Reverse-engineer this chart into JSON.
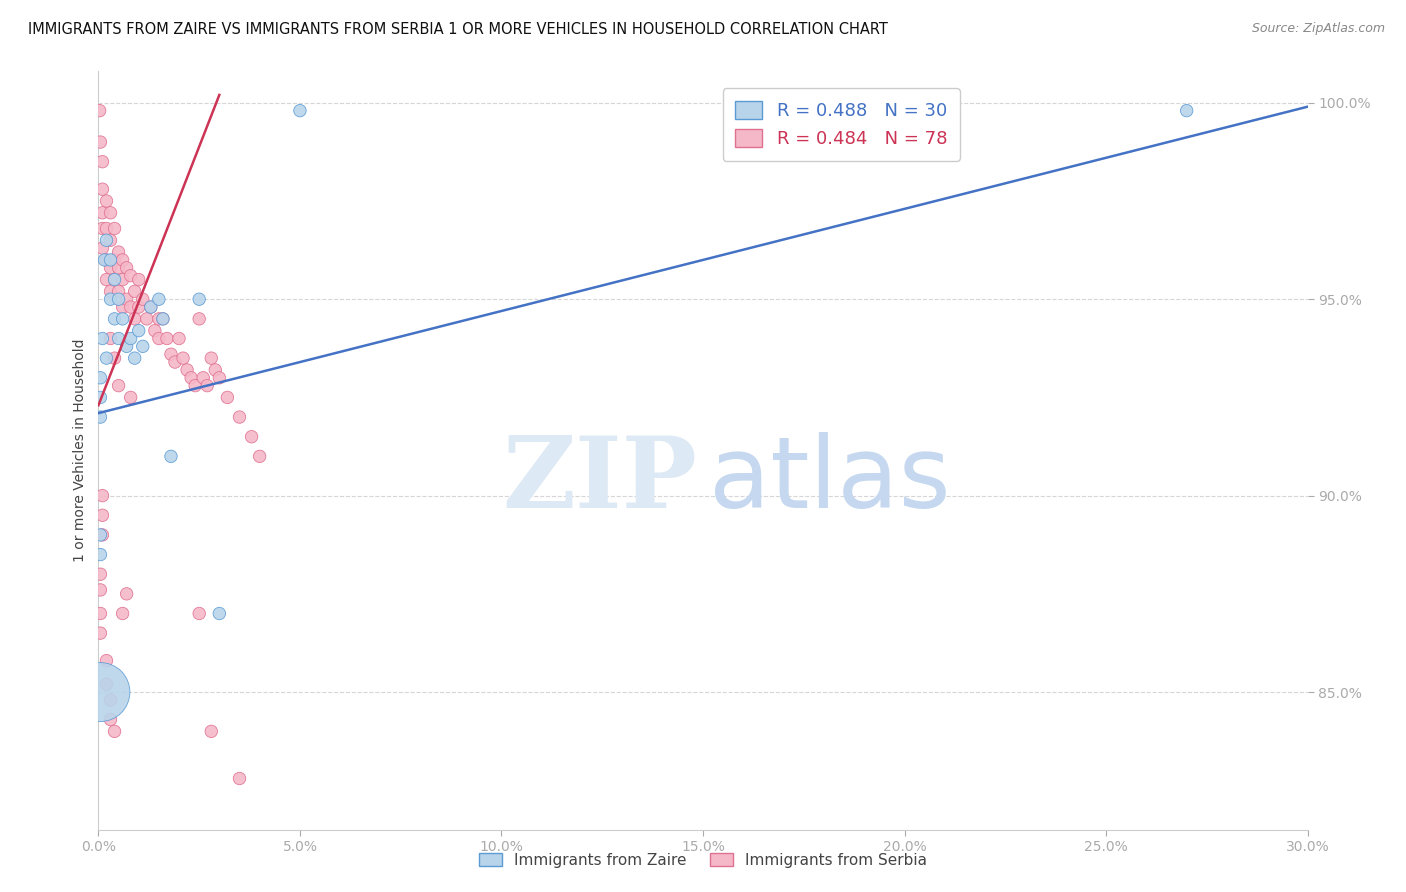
{
  "title": "IMMIGRANTS FROM ZAIRE VS IMMIGRANTS FROM SERBIA 1 OR MORE VEHICLES IN HOUSEHOLD CORRELATION CHART",
  "source": "Source: ZipAtlas.com",
  "ylabel": "1 or more Vehicles in Household",
  "xlim": [
    0.0,
    0.3
  ],
  "ylim": [
    0.815,
    1.008
  ],
  "xtick_labels": [
    "0.0%",
    "5.0%",
    "10.0%",
    "15.0%",
    "20.0%",
    "25.0%",
    "30.0%"
  ],
  "xtick_vals": [
    0.0,
    0.05,
    0.1,
    0.15,
    0.2,
    0.25,
    0.3
  ],
  "ytick_labels": [
    "85.0%",
    "90.0%",
    "95.0%",
    "100.0%"
  ],
  "ytick_vals": [
    0.85,
    0.9,
    0.95,
    1.0
  ],
  "grid_color": "#cccccc",
  "background_color": "#ffffff",
  "zaire_color": "#b8d4ea",
  "serbia_color": "#f5b8c8",
  "zaire_edge_color": "#5b9bd5",
  "serbia_edge_color": "#e07090",
  "zaire_trend_color": "#4472c4",
  "serbia_trend_color": "#cc3355",
  "legend_zaire_label": "R = 0.488   N = 30",
  "legend_serbia_label": "R = 0.484   N = 78",
  "zaire_x": [
    0.0005,
    0.001,
    0.0015,
    0.002,
    0.002,
    0.003,
    0.003,
    0.004,
    0.004,
    0.005,
    0.005,
    0.006,
    0.007,
    0.008,
    0.009,
    0.01,
    0.011,
    0.013,
    0.015,
    0.016,
    0.018,
    0.025,
    0.03,
    0.05,
    0.27,
    0.0005,
    0.0005,
    0.0005,
    0.0005,
    0.0005
  ],
  "zaire_y": [
    0.93,
    0.94,
    0.96,
    0.935,
    0.965,
    0.95,
    0.96,
    0.955,
    0.945,
    0.94,
    0.95,
    0.945,
    0.938,
    0.94,
    0.935,
    0.942,
    0.938,
    0.948,
    0.95,
    0.945,
    0.91,
    0.95,
    0.87,
    0.998,
    0.998,
    0.92,
    0.925,
    0.89,
    0.885,
    0.85
  ],
  "zaire_sizes": [
    80,
    80,
    80,
    80,
    80,
    80,
    80,
    80,
    80,
    80,
    80,
    80,
    80,
    80,
    80,
    80,
    80,
    80,
    80,
    80,
    80,
    80,
    80,
    80,
    80,
    80,
    80,
    80,
    80,
    1800
  ],
  "serbia_x": [
    0.0003,
    0.0005,
    0.001,
    0.001,
    0.001,
    0.001,
    0.001,
    0.002,
    0.002,
    0.002,
    0.002,
    0.003,
    0.003,
    0.003,
    0.003,
    0.004,
    0.004,
    0.004,
    0.005,
    0.005,
    0.005,
    0.006,
    0.006,
    0.006,
    0.007,
    0.007,
    0.008,
    0.008,
    0.009,
    0.009,
    0.01,
    0.01,
    0.011,
    0.012,
    0.013,
    0.014,
    0.015,
    0.015,
    0.016,
    0.017,
    0.018,
    0.019,
    0.02,
    0.021,
    0.022,
    0.023,
    0.024,
    0.025,
    0.026,
    0.027,
    0.028,
    0.029,
    0.03,
    0.032,
    0.035,
    0.038,
    0.04,
    0.003,
    0.004,
    0.005,
    0.001,
    0.001,
    0.001,
    0.0005,
    0.0005,
    0.0005,
    0.0005,
    0.002,
    0.002,
    0.003,
    0.003,
    0.004,
    0.006,
    0.007,
    0.008,
    0.025,
    0.028,
    0.035
  ],
  "serbia_y": [
    0.998,
    0.99,
    0.985,
    0.978,
    0.972,
    0.968,
    0.963,
    0.975,
    0.968,
    0.96,
    0.955,
    0.972,
    0.965,
    0.958,
    0.952,
    0.968,
    0.96,
    0.955,
    0.962,
    0.958,
    0.952,
    0.96,
    0.955,
    0.948,
    0.958,
    0.95,
    0.956,
    0.948,
    0.952,
    0.945,
    0.955,
    0.948,
    0.95,
    0.945,
    0.948,
    0.942,
    0.945,
    0.94,
    0.945,
    0.94,
    0.936,
    0.934,
    0.94,
    0.935,
    0.932,
    0.93,
    0.928,
    0.945,
    0.93,
    0.928,
    0.935,
    0.932,
    0.93,
    0.925,
    0.92,
    0.915,
    0.91,
    0.94,
    0.935,
    0.928,
    0.9,
    0.895,
    0.89,
    0.88,
    0.876,
    0.87,
    0.865,
    0.858,
    0.852,
    0.848,
    0.843,
    0.84,
    0.87,
    0.875,
    0.925,
    0.87,
    0.84,
    0.828
  ],
  "serbia_sizes": [
    80,
    80,
    80,
    80,
    80,
    80,
    80,
    80,
    80,
    80,
    80,
    80,
    80,
    80,
    80,
    80,
    80,
    80,
    80,
    80,
    80,
    80,
    80,
    80,
    80,
    80,
    80,
    80,
    80,
    80,
    80,
    80,
    80,
    80,
    80,
    80,
    80,
    80,
    80,
    80,
    80,
    80,
    80,
    80,
    80,
    80,
    80,
    80,
    80,
    80,
    80,
    80,
    80,
    80,
    80,
    80,
    80,
    80,
    80,
    80,
    80,
    80,
    80,
    80,
    80,
    80,
    80,
    80,
    80,
    80,
    80,
    80,
    80,
    80,
    80,
    80,
    80,
    80
  ],
  "zaire_trend_x": [
    0.0,
    0.3
  ],
  "zaire_trend_y": [
    0.921,
    0.999
  ],
  "serbia_trend_x": [
    0.0,
    0.03
  ],
  "serbia_trend_y": [
    0.923,
    1.002
  ]
}
